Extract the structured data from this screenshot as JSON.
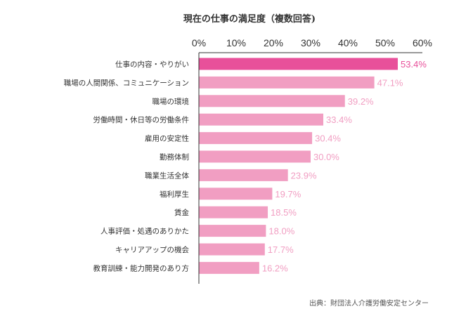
{
  "source_note": "出典：財団法人介護労働安定センター",
  "colors": {
    "highlight_bar": "#e8509a",
    "bar": "#f19ec2",
    "highlight_label": "#e8509a",
    "label": "#f19ec2",
    "axis": "#333333"
  },
  "chart_data": {
    "type": "bar",
    "orientation": "horizontal",
    "title": "現在の仕事の満足度（複数回答)",
    "xlabel": "",
    "ylabel": "",
    "xlim": [
      0,
      60
    ],
    "ticks": [
      "0%",
      "10%",
      "20%",
      "30%",
      "40%",
      "50%",
      "60%"
    ],
    "unit": "%",
    "grid": false,
    "categories": [
      "仕事の内容・やりがい",
      "職場の人間関係、コミュニケーション",
      "職場の環境",
      "労働時間・休日等の労働条件",
      "雇用の安定性",
      "勤務体制",
      "職業生活全体",
      "福利厚生",
      "賃金",
      "人事評価・処遇のありかた",
      "キャリアアップの機会",
      "教育訓練・能力開発のあり方"
    ],
    "values": [
      53.4,
      47.1,
      39.2,
      33.4,
      30.4,
      30.0,
      23.9,
      19.7,
      18.5,
      18.0,
      17.7,
      16.2
    ],
    "value_labels": [
      "53.4%",
      "47.1%",
      "39.2%",
      "33.4%",
      "30.4%",
      "30.0%",
      "23.9%",
      "19.7%",
      "18.5%",
      "18.0%",
      "17.7%",
      "16.2%"
    ],
    "highlighted_index": 0
  }
}
